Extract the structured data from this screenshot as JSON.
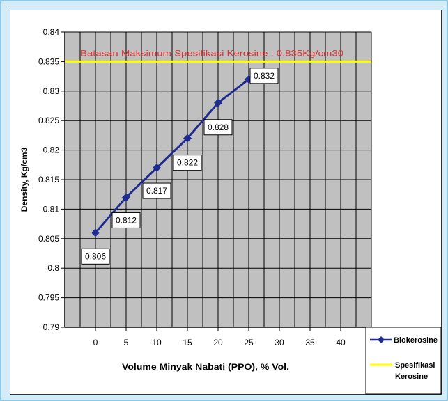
{
  "chart_data": {
    "type": "line",
    "title": "",
    "xlabel": "Volume Minyak Nabati (PPO), % Vol.",
    "ylabel": "Density, Kg/cm3",
    "xlim": [
      -5,
      45
    ],
    "ylim": [
      0.79,
      0.84
    ],
    "x_ticks": [
      "0",
      "5",
      "10",
      "15",
      "20",
      "25",
      "30",
      "35",
      "40"
    ],
    "y_ticks": [
      "0.79",
      "0.795",
      "0.8",
      "0.805",
      "0.81",
      "0.815",
      "0.82",
      "0.825",
      "0.83",
      "0.835",
      "0.84"
    ],
    "grid": true,
    "plot_background": "#c0c0c0",
    "legend_position": "bottom-right",
    "series": [
      {
        "name": "Biokerosine",
        "color": "#1f2b8f",
        "x": [
          0,
          5,
          10,
          15,
          20,
          25
        ],
        "values": [
          0.806,
          0.812,
          0.817,
          0.822,
          0.828,
          0.832
        ],
        "data_labels": [
          "0.806",
          "0.812",
          "0.817",
          "0.822",
          "0.828",
          "0.832"
        ]
      },
      {
        "name": "Spesifikasi Kerosine",
        "color": "#ffff00",
        "x": [
          -5,
          45
        ],
        "values": [
          0.835,
          0.835
        ]
      }
    ],
    "annotation": "Batasan Maksimum Spesifikasi Kerosine : 0.835Kg/cm30"
  }
}
